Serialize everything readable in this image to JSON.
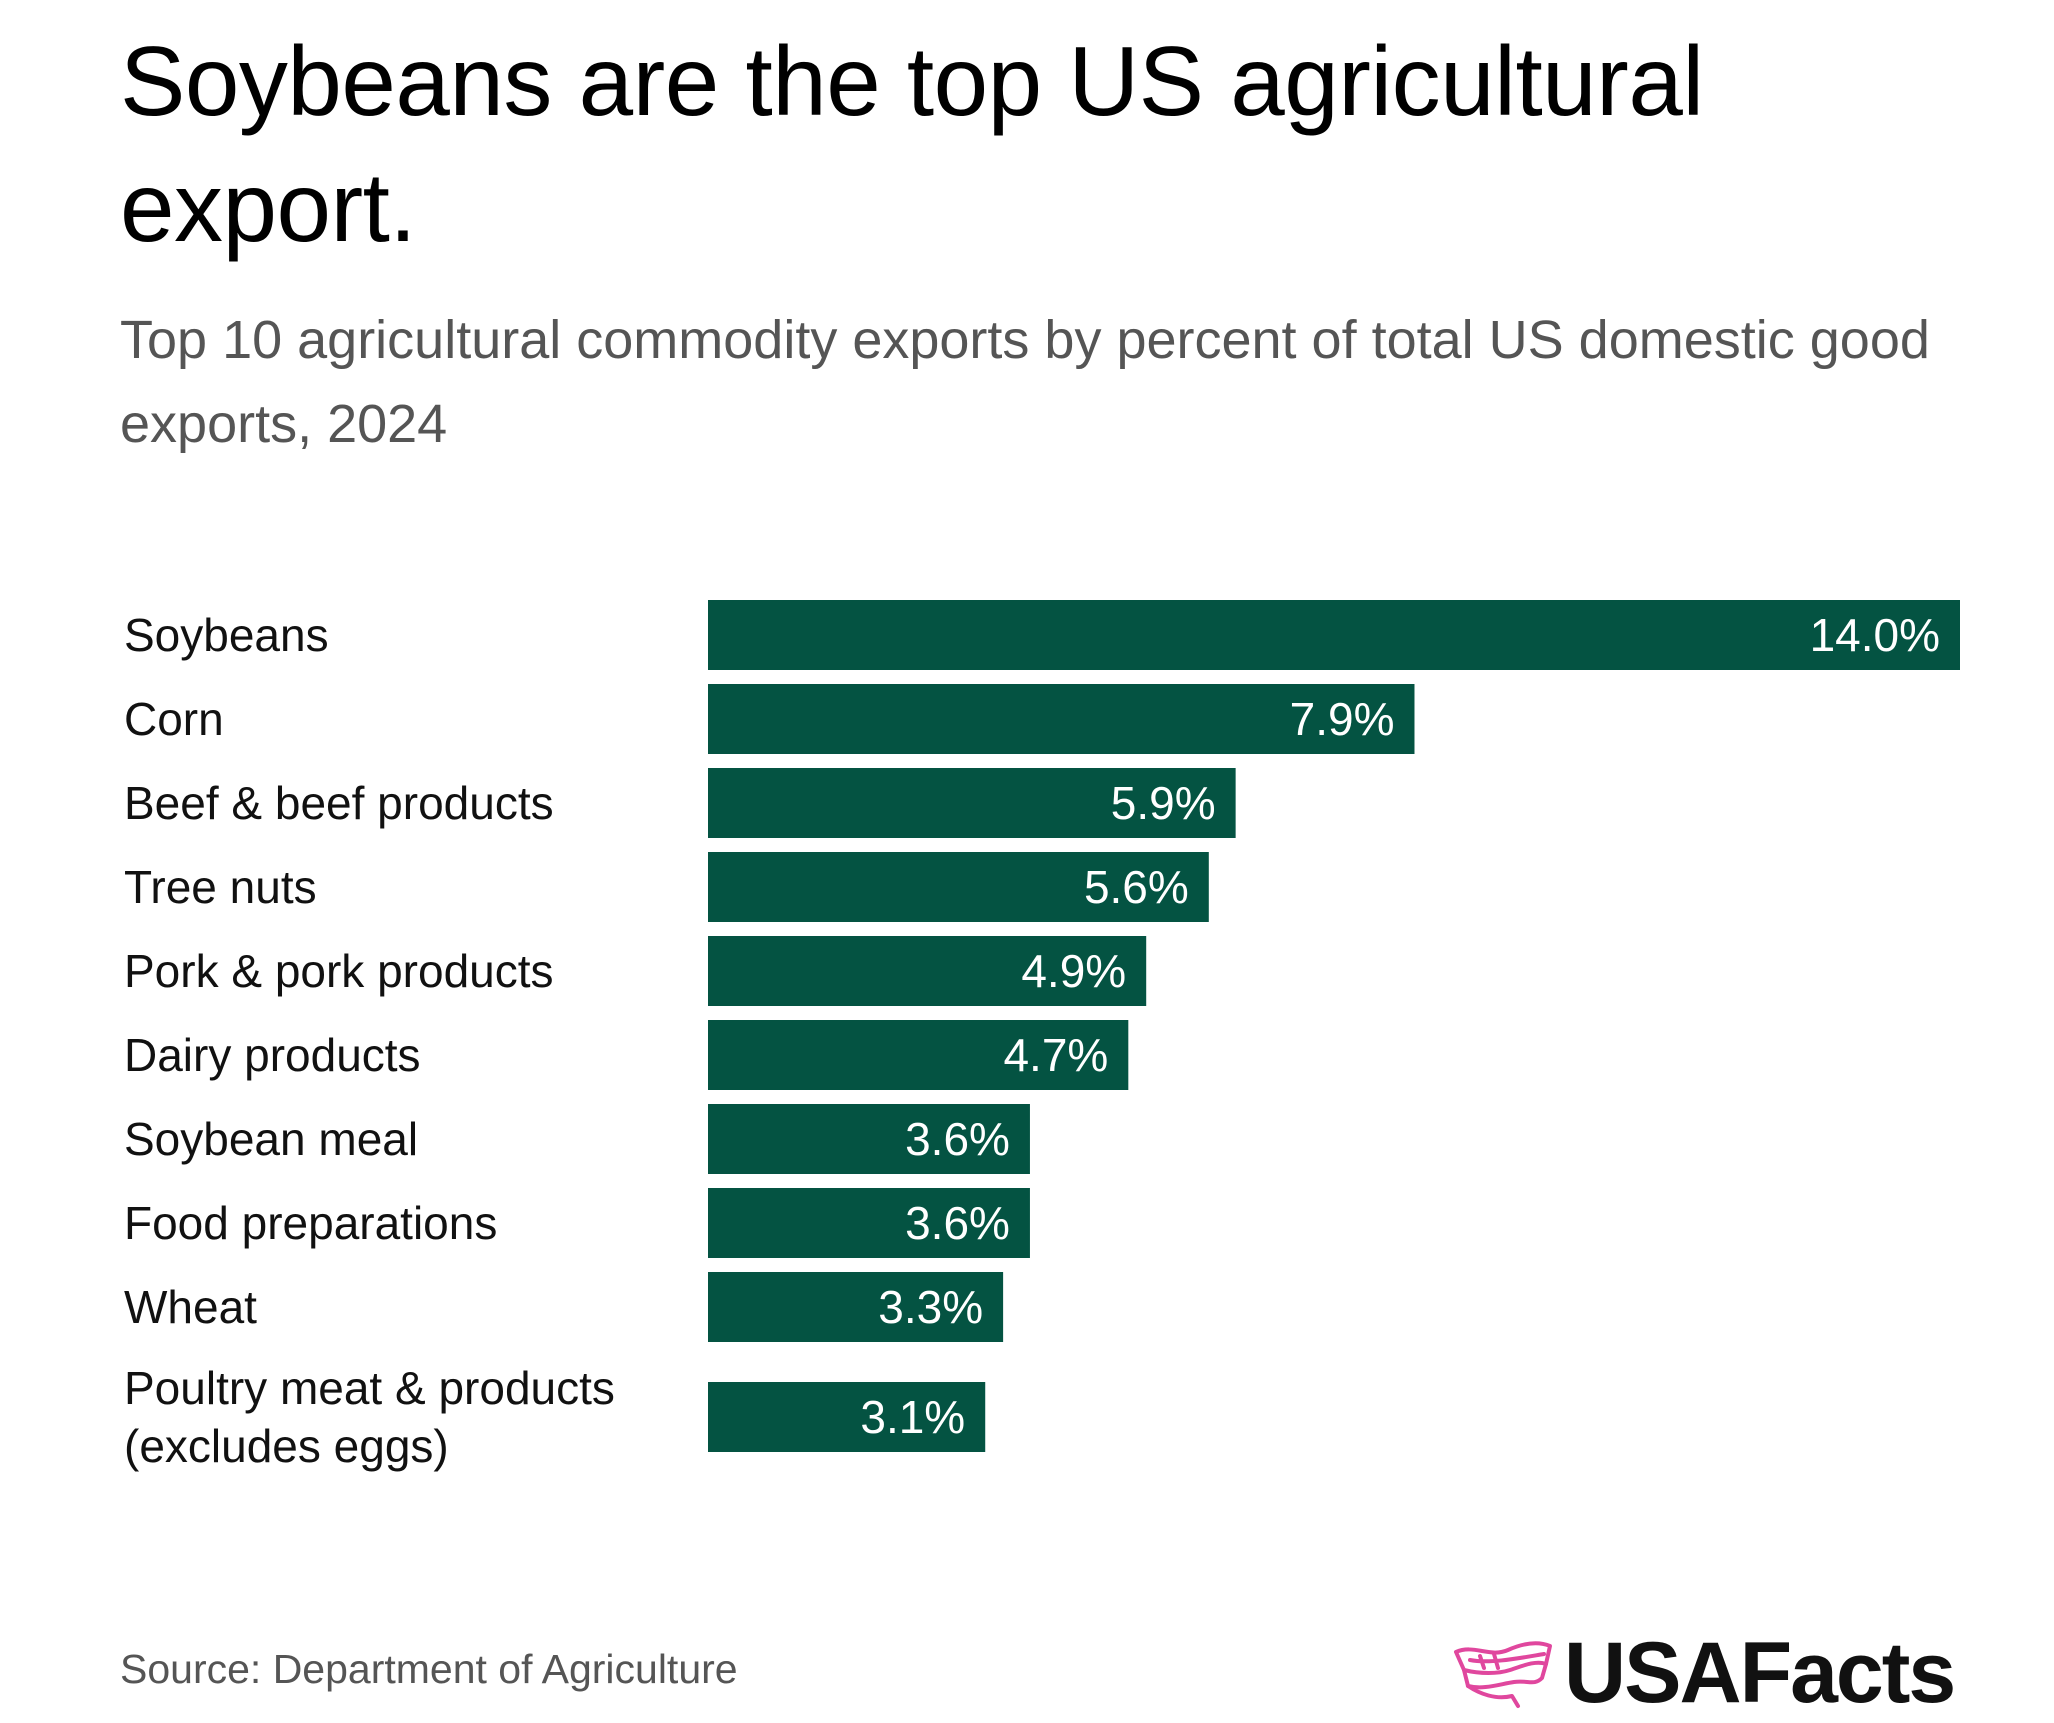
{
  "title": "Soybeans are the top US agricultural export.",
  "subtitle": "Top 10 agricultural commodity exports by percent of total US domestic good exports, 2024",
  "source": "Source: Department of Agriculture",
  "brand": {
    "name": "USAFacts",
    "icon": "us-map-flag-icon",
    "icon_color": "#e0479e"
  },
  "colors": {
    "bar": "#045342",
    "bar_label": "#ffffff",
    "category_label": "#111111"
  },
  "chart_data": {
    "type": "bar",
    "orientation": "horizontal",
    "categories": [
      "Soybeans",
      "Corn",
      "Beef & beef products",
      "Tree nuts",
      "Pork & pork products",
      "Dairy products",
      "Soybean meal",
      "Food preparations",
      "Wheat",
      "Poultry meat & products\n(excludes eggs)"
    ],
    "values": [
      14.0,
      7.9,
      5.9,
      5.6,
      4.9,
      4.7,
      3.6,
      3.6,
      3.3,
      3.1
    ],
    "data_labels": [
      "14.0%",
      "7.9%",
      "5.9%",
      "5.6%",
      "4.9%",
      "4.7%",
      "3.6%",
      "3.6%",
      "3.3%",
      "3.1%"
    ],
    "unit": "%",
    "xlim": [
      0,
      14.0
    ],
    "grid": false,
    "legend": "none",
    "title": "Soybeans are the top US agricultural export.",
    "subtitle": "Top 10 agricultural commodity exports by percent of total US domestic good exports, 2024"
  }
}
